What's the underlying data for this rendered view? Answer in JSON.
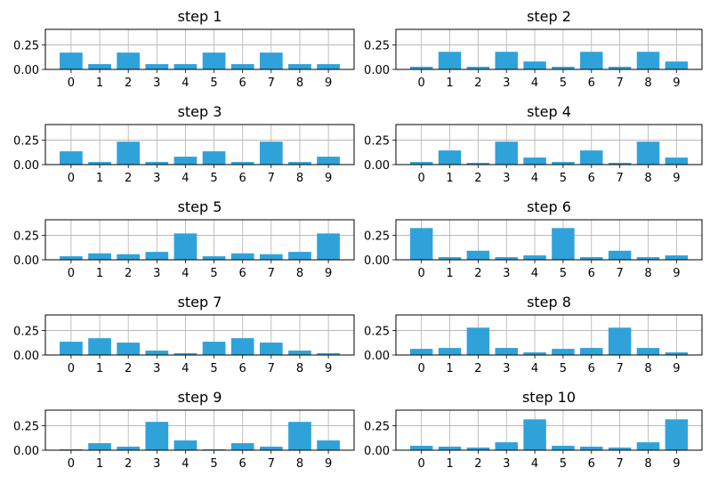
{
  "chart_data": {
    "type": "bar",
    "layout": "5 rows x 2 columns",
    "bar_color": "#30a2da",
    "grid": true,
    "categories": [
      "0",
      "1",
      "2",
      "3",
      "4",
      "5",
      "6",
      "7",
      "8",
      "9"
    ],
    "ylim": [
      0,
      0.41
    ],
    "yticks": [
      0,
      0.25
    ],
    "ytick_labels": [
      "0.00",
      "0.25"
    ],
    "subplots": [
      {
        "title": "step 1",
        "values": [
          0.172,
          0.054,
          0.172,
          0.054,
          0.054,
          0.172,
          0.054,
          0.172,
          0.054,
          0.054
        ]
      },
      {
        "title": "step 2",
        "values": [
          0.027,
          0.18,
          0.027,
          0.18,
          0.081,
          0.027,
          0.18,
          0.027,
          0.18,
          0.081
        ]
      },
      {
        "title": "step 3",
        "values": [
          0.136,
          0.027,
          0.235,
          0.027,
          0.081,
          0.136,
          0.027,
          0.235,
          0.027,
          0.081
        ]
      },
      {
        "title": "step 4",
        "values": [
          0.027,
          0.145,
          0.018,
          0.235,
          0.072,
          0.027,
          0.145,
          0.018,
          0.235,
          0.072
        ]
      },
      {
        "title": "step 5",
        "values": [
          0.036,
          0.066,
          0.057,
          0.081,
          0.27,
          0.036,
          0.066,
          0.057,
          0.081,
          0.27
        ]
      },
      {
        "title": "step 6",
        "values": [
          0.325,
          0.027,
          0.093,
          0.027,
          0.045,
          0.325,
          0.027,
          0.093,
          0.027,
          0.045
        ]
      },
      {
        "title": "step 7",
        "values": [
          0.136,
          0.172,
          0.127,
          0.045,
          0.018,
          0.136,
          0.172,
          0.127,
          0.045,
          0.018
        ]
      },
      {
        "title": "step 8",
        "values": [
          0.063,
          0.072,
          0.28,
          0.072,
          0.027,
          0.063,
          0.072,
          0.28,
          0.072,
          0.027
        ]
      },
      {
        "title": "step 9",
        "values": [
          0.009,
          0.072,
          0.036,
          0.29,
          0.1,
          0.009,
          0.072,
          0.036,
          0.29,
          0.1
        ]
      },
      {
        "title": "step 10",
        "values": [
          0.045,
          0.036,
          0.027,
          0.081,
          0.316,
          0.045,
          0.036,
          0.027,
          0.081,
          0.316
        ]
      }
    ]
  }
}
